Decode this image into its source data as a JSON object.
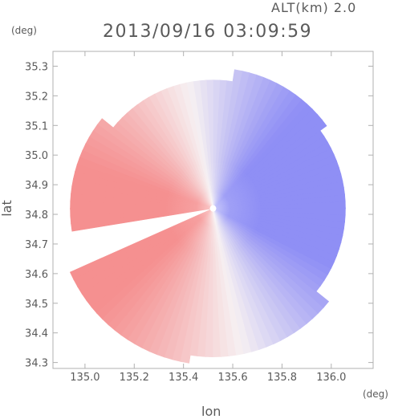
{
  "header": {
    "altitude": "ALT(km) 2.0",
    "timestamp": "2013/09/16 03:09:59"
  },
  "chart_data": {
    "type": "heatmap",
    "title": "2013/09/16 03:09:59",
    "xlabel": "lon",
    "ylabel": "lat",
    "x_unit": "(deg)",
    "y_unit": "(deg)",
    "xlim": [
      134.87,
      136.17
    ],
    "ylim": [
      34.28,
      35.35
    ],
    "x_ticks": [
      "135.0",
      "135.2",
      "135.4",
      "135.6",
      "135.8",
      "136.0"
    ],
    "y_ticks": [
      "34.3",
      "34.4",
      "34.5",
      "34.6",
      "34.7",
      "34.8",
      "34.9",
      "35.0",
      "35.1",
      "35.2",
      "35.3"
    ],
    "radar_center": {
      "lon": 135.52,
      "lat": 34.82
    },
    "colors": {
      "toward": "#8f8ff5",
      "away": "#f59090",
      "neutral": "#f6f0f2",
      "axis": "#b0b0b0"
    },
    "grid": false
  }
}
